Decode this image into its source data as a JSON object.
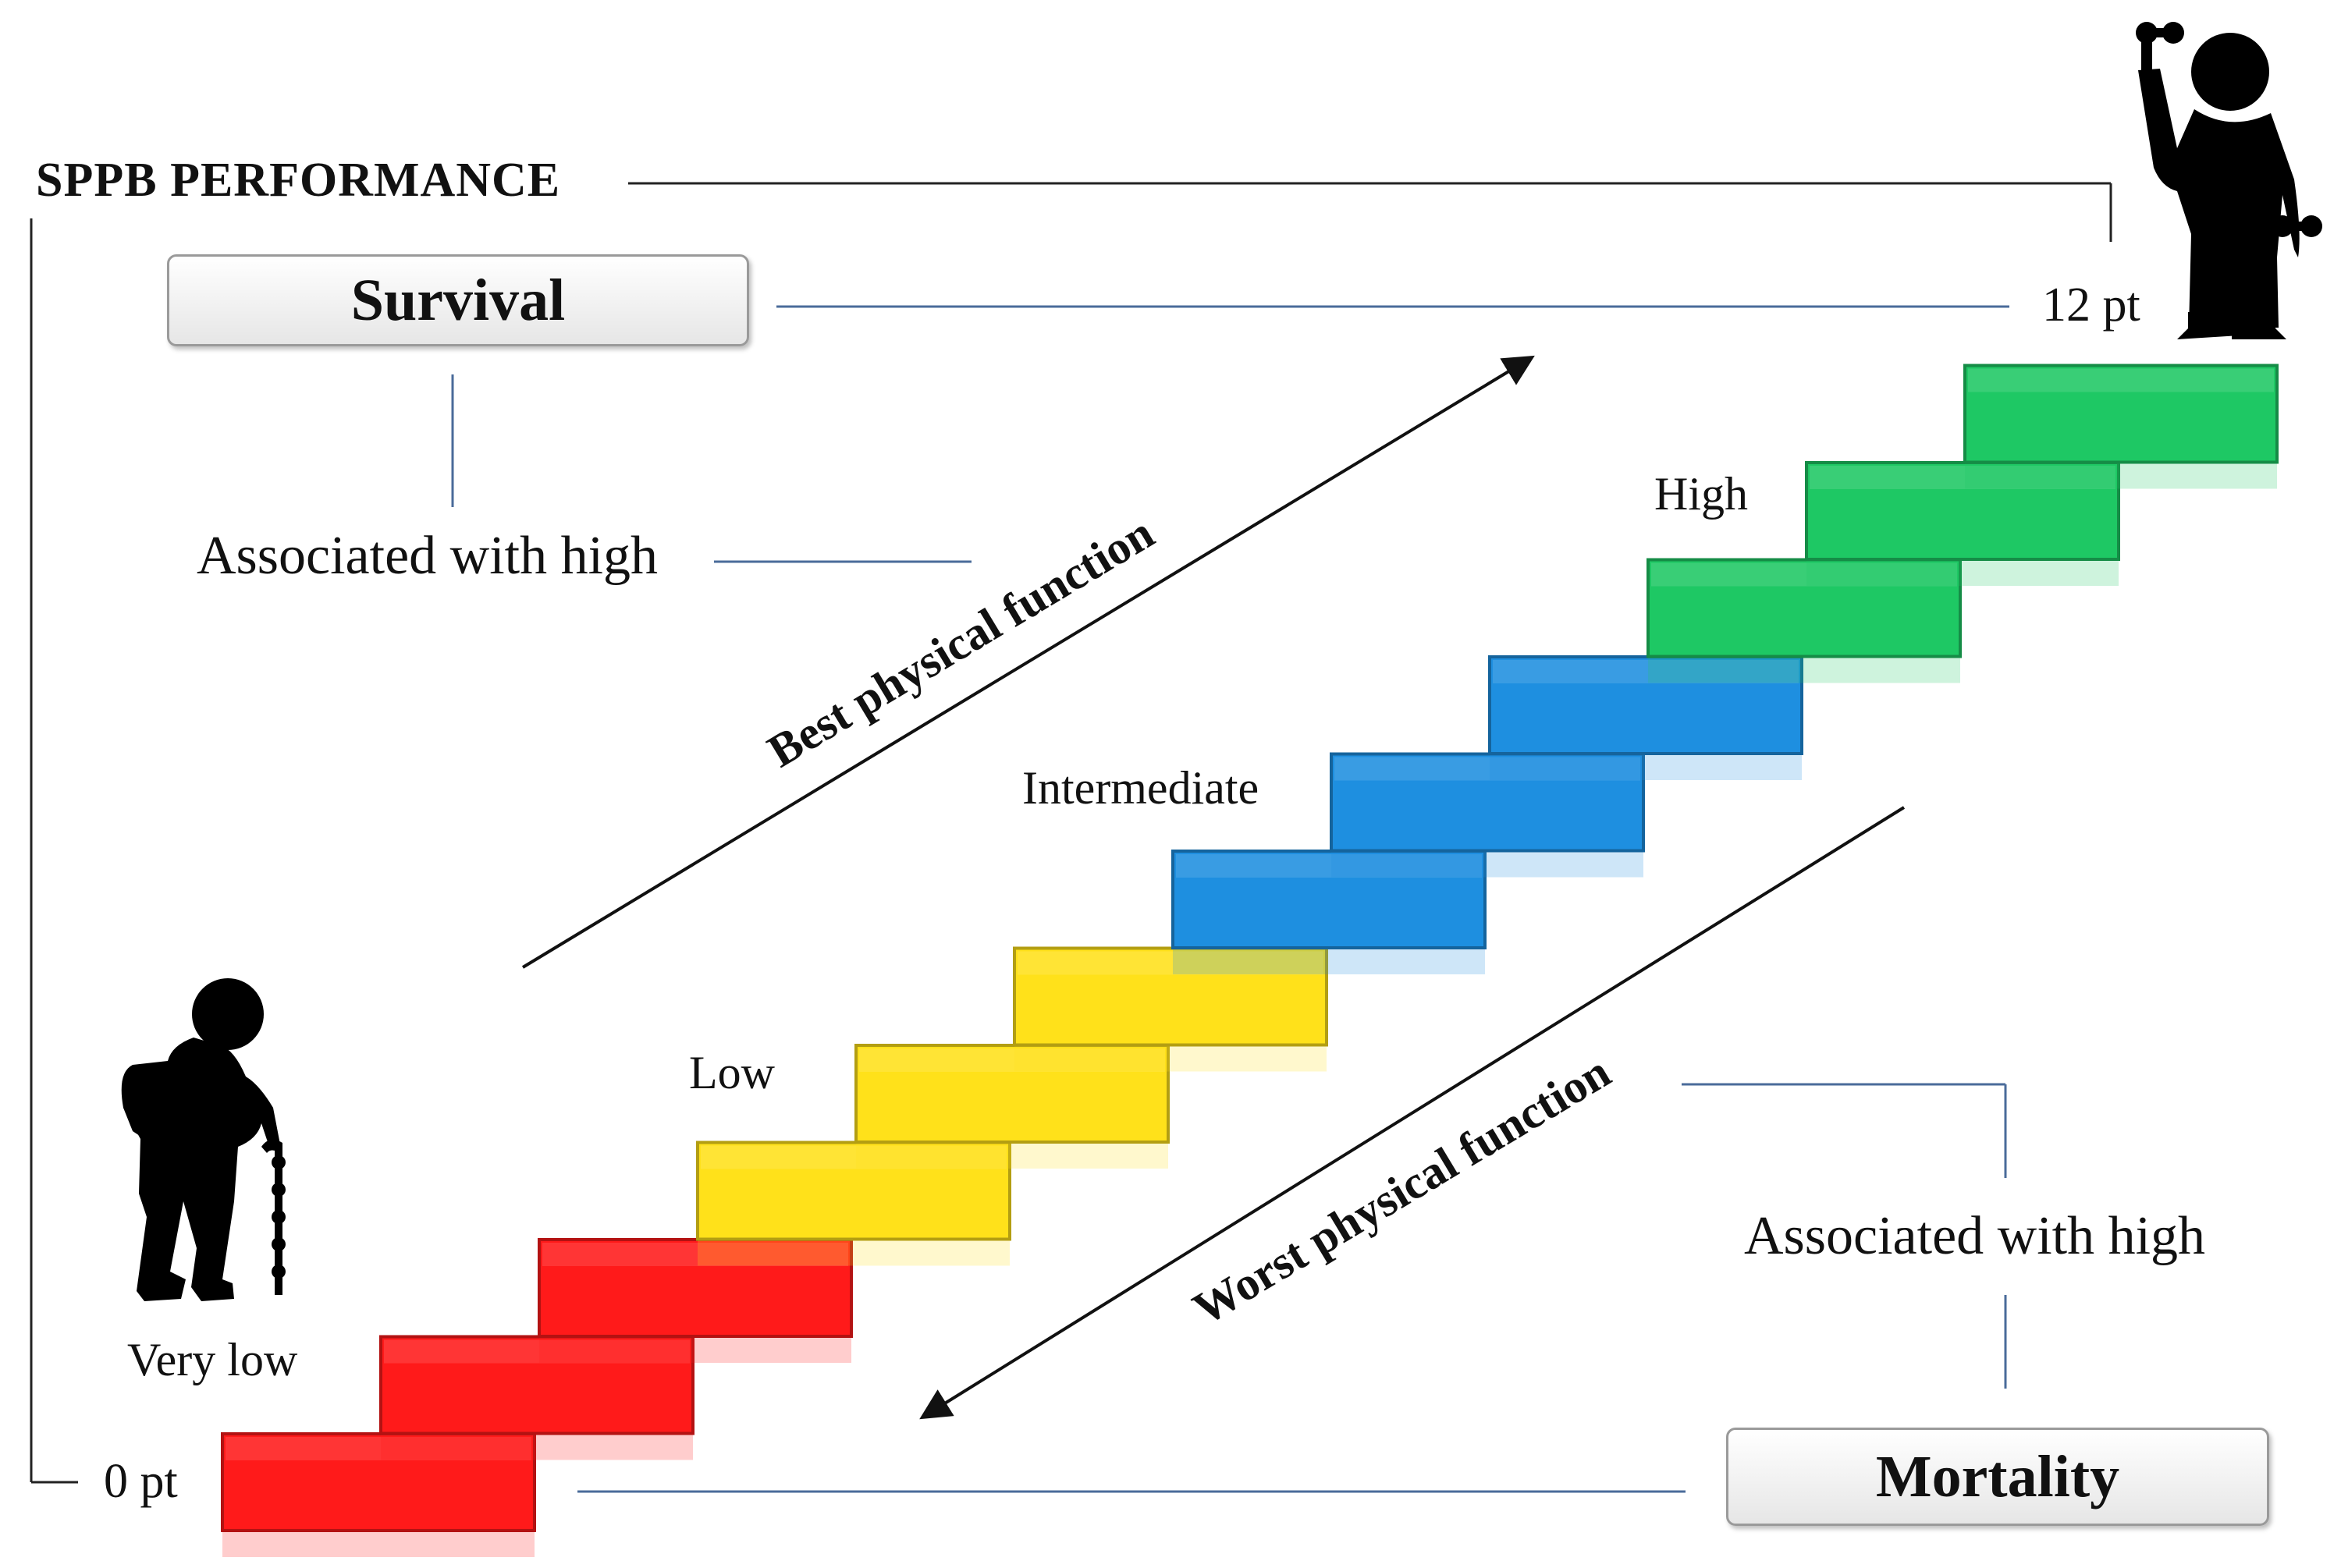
{
  "title": "SPPB PERFORMANCE",
  "scale": {
    "top": "12 pt",
    "bottom": "0 pt"
  },
  "outcomes": {
    "survival": "Survival",
    "mortality": "Mortality"
  },
  "associations": {
    "survival": "Associated with high",
    "mortality": "Associated with high"
  },
  "arrows": {
    "best": "Best physical function",
    "worst": "Worst physical function"
  },
  "categories": [
    {
      "label": "Very low",
      "color": "#ff1a1a"
    },
    {
      "label": "Low",
      "color": "#ffe11a"
    },
    {
      "label": "Intermediate",
      "color": "#1e8fe0"
    },
    {
      "label": "High",
      "color": "#1ec864"
    }
  ],
  "icons": {
    "top": "active-person-with-dumbbells-icon",
    "bottom": "elderly-person-with-cane-icon"
  }
}
